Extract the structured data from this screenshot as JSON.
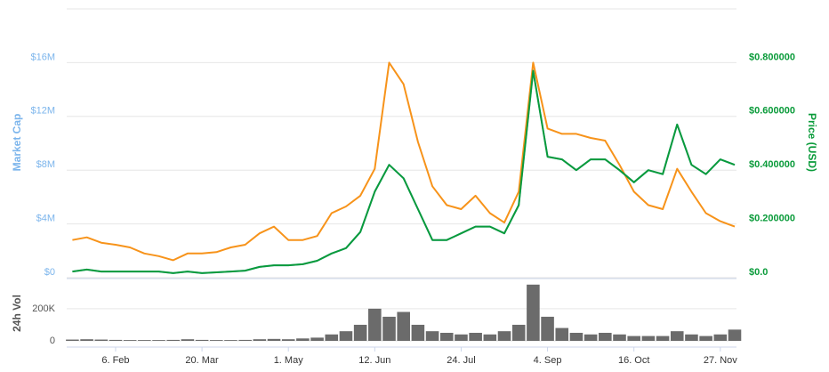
{
  "chart_data": {
    "type": "line",
    "categories": [
      null,
      null,
      null,
      "6. Feb",
      null,
      null,
      null,
      null,
      null,
      "20. Mar",
      null,
      null,
      null,
      null,
      null,
      "1. May",
      null,
      null,
      null,
      null,
      null,
      "12. Jun",
      null,
      null,
      null,
      null,
      null,
      "24. Jul",
      null,
      null,
      null,
      null,
      null,
      "4. Sep",
      null,
      null,
      null,
      null,
      null,
      "16. Oct",
      null,
      null,
      null,
      null,
      null,
      "27. Nov",
      null
    ],
    "ylabel": "Market Cap",
    "y2label": "Price (USD)",
    "volume_label": "24h Vol",
    "ylim": [
      0,
      20000000
    ],
    "yticks": [
      {
        "value": 0,
        "label": "$0"
      },
      {
        "value": 4000000,
        "label": "$4M"
      },
      {
        "value": 8000000,
        "label": "$8M"
      },
      {
        "value": 12000000,
        "label": "$12M"
      },
      {
        "value": 16000000,
        "label": "$16M"
      }
    ],
    "y2lim": [
      0,
      1
    ],
    "y2ticks": [
      {
        "value": 0,
        "label": "$0.0"
      },
      {
        "value": 0.2,
        "label": "$0.200000"
      },
      {
        "value": 0.4,
        "label": "$0.400000"
      },
      {
        "value": 0.6,
        "label": "$0.600000"
      },
      {
        "value": 0.8,
        "label": "$0.800000"
      }
    ],
    "grid": true,
    "series": [
      {
        "color": "#7cb5ec",
        "axis": "y",
        "values": [
          460000,
          600000,
          460000,
          460000,
          460000,
          460000,
          460000,
          340000,
          460000,
          340000,
          400000,
          460000,
          520000,
          800000,
          920000,
          920000,
          1000000,
          1260000,
          1800000,
          2200000,
          3400000,
          6400000,
          8400000,
          7400000,
          5100000,
          2800000,
          2800000,
          3300000,
          3800000,
          3800000,
          3300000,
          5400000,
          15400000,
          9000000,
          8800000,
          8000000,
          8800000,
          8800000,
          8000000,
          7100000,
          8000000,
          7700000,
          11400000,
          8400000,
          7700000,
          8800000,
          8400000
        ]
      },
      {
        "color": "#f7931a",
        "axis": "y",
        "values": [
          2800000,
          3000000,
          2600000,
          2450000,
          2250000,
          1800000,
          1600000,
          1300000,
          1800000,
          1800000,
          1900000,
          2250000,
          2450000,
          3300000,
          3800000,
          2800000,
          2800000,
          3100000,
          4800000,
          5300000,
          6100000,
          8100000,
          16000000,
          14400000,
          10100000,
          6800000,
          5400000,
          5100000,
          6100000,
          4800000,
          4100000,
          6400000,
          16000000,
          11100000,
          10700000,
          10700000,
          10400000,
          10200000,
          8400000,
          6400000,
          5400000,
          5100000,
          8100000,
          6400000,
          4800000,
          4200000,
          3800000
        ]
      },
      {
        "color": "#0a9b3a",
        "axis": "y2",
        "values": [
          0.023,
          0.03,
          0.023,
          0.023,
          0.023,
          0.023,
          0.023,
          0.017,
          0.023,
          0.017,
          0.02,
          0.023,
          0.026,
          0.04,
          0.046,
          0.046,
          0.05,
          0.063,
          0.09,
          0.11,
          0.17,
          0.32,
          0.42,
          0.37,
          0.255,
          0.14,
          0.14,
          0.165,
          0.19,
          0.19,
          0.165,
          0.27,
          0.77,
          0.45,
          0.44,
          0.4,
          0.44,
          0.44,
          0.4,
          0.355,
          0.4,
          0.385,
          0.57,
          0.42,
          0.385,
          0.44,
          0.42
        ]
      }
    ],
    "volume": {
      "color": "#6b6b6b",
      "ylim": [
        0,
        360000
      ],
      "yticks": [
        0,
        {
          "value": 200000,
          "label": "200K"
        }
      ],
      "values": [
        8000,
        10000,
        8000,
        6000,
        5000,
        5000,
        5000,
        6000,
        10000,
        6000,
        5000,
        5000,
        6000,
        10000,
        12000,
        10000,
        15000,
        20000,
        40000,
        60000,
        100000,
        200000,
        150000,
        180000,
        100000,
        60000,
        50000,
        40000,
        50000,
        40000,
        60000,
        100000,
        350000,
        150000,
        80000,
        50000,
        40000,
        50000,
        40000,
        30000,
        30000,
        30000,
        60000,
        40000,
        30000,
        40000,
        70000
      ]
    }
  }
}
